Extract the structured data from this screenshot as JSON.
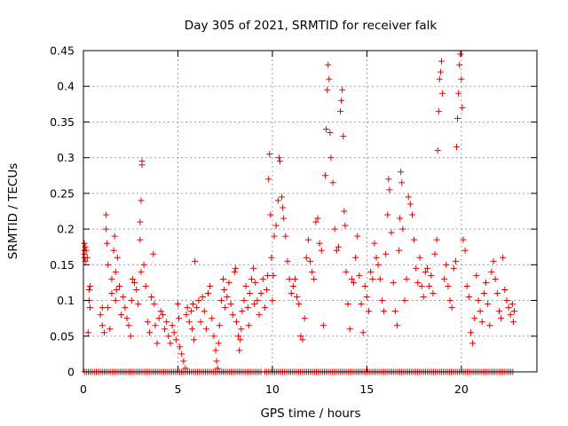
{
  "chart_data": {
    "type": "scatter",
    "title": "Day 305 of 2021, SRMTID for receiver falk",
    "xlabel": "GPS time / hours",
    "ylabel": "SRMTID / TECUs",
    "xlim": [
      0,
      24
    ],
    "ylim": [
      0,
      0.45
    ],
    "xticks": [
      0,
      5,
      10,
      15,
      20
    ],
    "yticks": [
      0,
      0.05,
      0.1,
      0.15,
      0.2,
      0.25,
      0.3,
      0.35,
      0.4,
      0.45
    ],
    "ytick_labels": [
      "0",
      "0.05",
      "0.1",
      "0.15",
      "0.2",
      "0.25",
      "0.3",
      "0.35",
      "0.4",
      "0.45"
    ],
    "grid": true,
    "marker": "+",
    "series": [
      {
        "name": "SRMTID",
        "color": "#e00000",
        "points": [
          [
            0.05,
            0.18
          ],
          [
            0.05,
            0.17
          ],
          [
            0.05,
            0.165
          ],
          [
            0.05,
            0.16
          ],
          [
            0.1,
            0.155
          ],
          [
            0.1,
            0.175
          ],
          [
            0.15,
            0.17
          ],
          [
            0.2,
            0.16
          ],
          [
            0.25,
            0.055
          ],
          [
            0.3,
            0.1
          ],
          [
            0.3,
            0.115
          ],
          [
            0.35,
            0.12
          ],
          [
            0.35,
            0.09
          ],
          [
            0.9,
            0.08
          ],
          [
            1.0,
            0.09
          ],
          [
            1.0,
            0.065
          ],
          [
            1.1,
            0.055
          ],
          [
            1.2,
            0.2
          ],
          [
            1.2,
            0.22
          ],
          [
            1.25,
            0.18
          ],
          [
            1.3,
            0.09
          ],
          [
            1.3,
            0.15
          ],
          [
            1.4,
            0.06
          ],
          [
            1.5,
            0.13
          ],
          [
            1.5,
            0.11
          ],
          [
            1.6,
            0.17
          ],
          [
            1.65,
            0.19
          ],
          [
            1.7,
            0.14
          ],
          [
            1.7,
            0.1
          ],
          [
            1.75,
            0.115
          ],
          [
            1.8,
            0.16
          ],
          [
            1.9,
            0.12
          ],
          [
            2.0,
            0.08
          ],
          [
            2.1,
            0.105
          ],
          [
            2.2,
            0.09
          ],
          [
            2.3,
            0.075
          ],
          [
            2.4,
            0.065
          ],
          [
            2.5,
            0.05
          ],
          [
            2.55,
            0.1
          ],
          [
            2.6,
            0.13
          ],
          [
            2.7,
            0.125
          ],
          [
            2.8,
            0.115
          ],
          [
            2.9,
            0.095
          ],
          [
            3.0,
            0.21
          ],
          [
            3.0,
            0.185
          ],
          [
            3.05,
            0.24
          ],
          [
            3.05,
            0.14
          ],
          [
            3.1,
            0.295
          ],
          [
            3.1,
            0.29
          ],
          [
            3.2,
            0.15
          ],
          [
            3.3,
            0.12
          ],
          [
            3.4,
            0.07
          ],
          [
            3.5,
            0.055
          ],
          [
            3.6,
            0.105
          ],
          [
            3.7,
            0.165
          ],
          [
            3.75,
            0.095
          ],
          [
            3.8,
            0.065
          ],
          [
            3.9,
            0.04
          ],
          [
            4.0,
            0.075
          ],
          [
            4.1,
            0.085
          ],
          [
            4.2,
            0.08
          ],
          [
            4.3,
            0.06
          ],
          [
            4.4,
            0.07
          ],
          [
            4.5,
            0.05
          ],
          [
            4.6,
            0.04
          ],
          [
            4.7,
            0.065
          ],
          [
            4.8,
            0.055
          ],
          [
            4.9,
            0.045
          ],
          [
            5.0,
            0.095
          ],
          [
            5.05,
            0.075
          ],
          [
            5.1,
            0.035
          ],
          [
            5.2,
            0.025
          ],
          [
            5.3,
            0.015
          ],
          [
            5.4,
            0.005
          ],
          [
            5.45,
            0.08
          ],
          [
            5.5,
            0.09
          ],
          [
            5.6,
            0.07
          ],
          [
            5.7,
            0.085
          ],
          [
            5.75,
            0.06
          ],
          [
            5.8,
            0.095
          ],
          [
            5.85,
            0.045
          ],
          [
            5.9,
            0.155
          ],
          [
            6.0,
            0.09
          ],
          [
            6.1,
            0.1
          ],
          [
            6.2,
            0.07
          ],
          [
            6.3,
            0.105
          ],
          [
            6.4,
            0.085
          ],
          [
            6.5,
            0.06
          ],
          [
            6.6,
            0.11
          ],
          [
            6.7,
            0.12
          ],
          [
            6.8,
            0.075
          ],
          [
            6.9,
            0.05
          ],
          [
            7.0,
            0.03
          ],
          [
            7.05,
            0.015
          ],
          [
            7.1,
            0.005
          ],
          [
            7.15,
            0.04
          ],
          [
            7.2,
            0.065
          ],
          [
            7.3,
            0.1
          ],
          [
            7.4,
            0.13
          ],
          [
            7.45,
            0.115
          ],
          [
            7.5,
            0.09
          ],
          [
            7.6,
            0.105
          ],
          [
            7.7,
            0.125
          ],
          [
            7.8,
            0.095
          ],
          [
            7.9,
            0.08
          ],
          [
            8.0,
            0.14
          ],
          [
            8.05,
            0.145
          ],
          [
            8.1,
            0.07
          ],
          [
            8.2,
            0.05
          ],
          [
            8.25,
            0.03
          ],
          [
            8.3,
            0.045
          ],
          [
            8.35,
            0.06
          ],
          [
            8.4,
            0.085
          ],
          [
            8.5,
            0.1
          ],
          [
            8.6,
            0.12
          ],
          [
            8.7,
            0.09
          ],
          [
            8.75,
            0.065
          ],
          [
            8.8,
            0.11
          ],
          [
            8.9,
            0.13
          ],
          [
            9.0,
            0.145
          ],
          [
            9.05,
            0.095
          ],
          [
            9.1,
            0.125
          ],
          [
            9.2,
            0.1
          ],
          [
            9.3,
            0.08
          ],
          [
            9.4,
            0.11
          ],
          [
            9.5,
            0.13
          ],
          [
            9.6,
            0.09
          ],
          [
            9.7,
            0.115
          ],
          [
            9.75,
            0.135
          ],
          [
            9.8,
            0.27
          ],
          [
            9.85,
            0.305
          ],
          [
            9.9,
            0.22
          ],
          [
            9.95,
            0.16
          ],
          [
            10.0,
            0.1
          ],
          [
            10.05,
            0.135
          ],
          [
            10.1,
            0.19
          ],
          [
            10.2,
            0.205
          ],
          [
            10.3,
            0.24
          ],
          [
            10.35,
            0.3
          ],
          [
            10.4,
            0.295
          ],
          [
            10.5,
            0.245
          ],
          [
            10.55,
            0.23
          ],
          [
            10.6,
            0.215
          ],
          [
            10.7,
            0.19
          ],
          [
            10.8,
            0.155
          ],
          [
            10.9,
            0.13
          ],
          [
            11.0,
            0.11
          ],
          [
            11.1,
            0.12
          ],
          [
            11.2,
            0.13
          ],
          [
            11.3,
            0.105
          ],
          [
            11.4,
            0.095
          ],
          [
            11.5,
            0.05
          ],
          [
            11.6,
            0.045
          ],
          [
            11.7,
            0.075
          ],
          [
            11.8,
            0.16
          ],
          [
            11.9,
            0.185
          ],
          [
            12.0,
            0.155
          ],
          [
            12.1,
            0.14
          ],
          [
            12.2,
            0.13
          ],
          [
            12.3,
            0.21
          ],
          [
            12.4,
            0.215
          ],
          [
            12.5,
            0.18
          ],
          [
            12.6,
            0.17
          ],
          [
            12.7,
            0.065
          ],
          [
            12.8,
            0.275
          ],
          [
            12.85,
            0.34
          ],
          [
            12.9,
            0.395
          ],
          [
            12.95,
            0.43
          ],
          [
            13.0,
            0.41
          ],
          [
            13.05,
            0.335
          ],
          [
            13.1,
            0.3
          ],
          [
            13.2,
            0.265
          ],
          [
            13.3,
            0.2
          ],
          [
            13.4,
            0.17
          ],
          [
            13.5,
            0.175
          ],
          [
            13.6,
            0.365
          ],
          [
            13.65,
            0.38
          ],
          [
            13.7,
            0.395
          ],
          [
            13.75,
            0.33
          ],
          [
            13.8,
            0.225
          ],
          [
            13.85,
            0.205
          ],
          [
            13.9,
            0.14
          ],
          [
            14.0,
            0.095
          ],
          [
            14.1,
            0.06
          ],
          [
            14.2,
            0.13
          ],
          [
            14.3,
            0.125
          ],
          [
            14.4,
            0.16
          ],
          [
            14.5,
            0.19
          ],
          [
            14.6,
            0.135
          ],
          [
            14.7,
            0.095
          ],
          [
            14.8,
            0.055
          ],
          [
            14.9,
            0.12
          ],
          [
            15.0,
            0.105
          ],
          [
            15.1,
            0.085
          ],
          [
            15.2,
            0.14
          ],
          [
            15.3,
            0.13
          ],
          [
            15.4,
            0.18
          ],
          [
            15.5,
            0.16
          ],
          [
            15.6,
            0.15
          ],
          [
            15.7,
            0.13
          ],
          [
            15.8,
            0.1
          ],
          [
            15.9,
            0.085
          ],
          [
            16.0,
            0.165
          ],
          [
            16.1,
            0.22
          ],
          [
            16.15,
            0.27
          ],
          [
            16.2,
            0.255
          ],
          [
            16.3,
            0.195
          ],
          [
            16.4,
            0.125
          ],
          [
            16.5,
            0.085
          ],
          [
            16.6,
            0.065
          ],
          [
            16.7,
            0.17
          ],
          [
            16.75,
            0.215
          ],
          [
            16.8,
            0.28
          ],
          [
            16.85,
            0.265
          ],
          [
            16.9,
            0.2
          ],
          [
            17.0,
            0.1
          ],
          [
            17.1,
            0.13
          ],
          [
            17.2,
            0.245
          ],
          [
            17.3,
            0.235
          ],
          [
            17.4,
            0.22
          ],
          [
            17.5,
            0.185
          ],
          [
            17.6,
            0.145
          ],
          [
            17.7,
            0.125
          ],
          [
            17.8,
            0.16
          ],
          [
            17.9,
            0.12
          ],
          [
            18.0,
            0.105
          ],
          [
            18.1,
            0.14
          ],
          [
            18.2,
            0.145
          ],
          [
            18.3,
            0.12
          ],
          [
            18.4,
            0.135
          ],
          [
            18.5,
            0.11
          ],
          [
            18.6,
            0.165
          ],
          [
            18.7,
            0.185
          ],
          [
            18.75,
            0.31
          ],
          [
            18.8,
            0.365
          ],
          [
            18.85,
            0.41
          ],
          [
            18.9,
            0.42
          ],
          [
            18.95,
            0.435
          ],
          [
            19.0,
            0.39
          ],
          [
            19.1,
            0.13
          ],
          [
            19.2,
            0.15
          ],
          [
            19.3,
            0.12
          ],
          [
            19.4,
            0.1
          ],
          [
            19.5,
            0.09
          ],
          [
            19.6,
            0.145
          ],
          [
            19.7,
            0.155
          ],
          [
            19.75,
            0.315
          ],
          [
            19.8,
            0.355
          ],
          [
            19.85,
            0.39
          ],
          [
            19.9,
            0.43
          ],
          [
            19.95,
            0.445
          ],
          [
            20.0,
            0.41
          ],
          [
            20.05,
            0.37
          ],
          [
            20.1,
            0.185
          ],
          [
            20.2,
            0.17
          ],
          [
            20.3,
            0.12
          ],
          [
            20.4,
            0.105
          ],
          [
            20.5,
            0.055
          ],
          [
            20.6,
            0.04
          ],
          [
            20.7,
            0.075
          ],
          [
            20.8,
            0.135
          ],
          [
            20.9,
            0.1
          ],
          [
            21.0,
            0.085
          ],
          [
            21.1,
            0.07
          ],
          [
            21.2,
            0.11
          ],
          [
            21.3,
            0.125
          ],
          [
            21.4,
            0.095
          ],
          [
            21.5,
            0.065
          ],
          [
            21.6,
            0.14
          ],
          [
            21.7,
            0.155
          ],
          [
            21.8,
            0.13
          ],
          [
            21.9,
            0.11
          ],
          [
            22.0,
            0.085
          ],
          [
            22.1,
            0.075
          ],
          [
            22.2,
            0.16
          ],
          [
            22.3,
            0.115
          ],
          [
            22.4,
            0.1
          ],
          [
            22.5,
            0.09
          ],
          [
            22.6,
            0.08
          ],
          [
            22.7,
            0.095
          ],
          [
            22.75,
            0.07
          ],
          [
            22.8,
            0.085
          ]
        ]
      }
    ],
    "zero_band": {
      "y": 0,
      "x_ranges": [
        [
          0.05,
          9.4
        ],
        [
          9.6,
          22.75
        ]
      ]
    }
  }
}
